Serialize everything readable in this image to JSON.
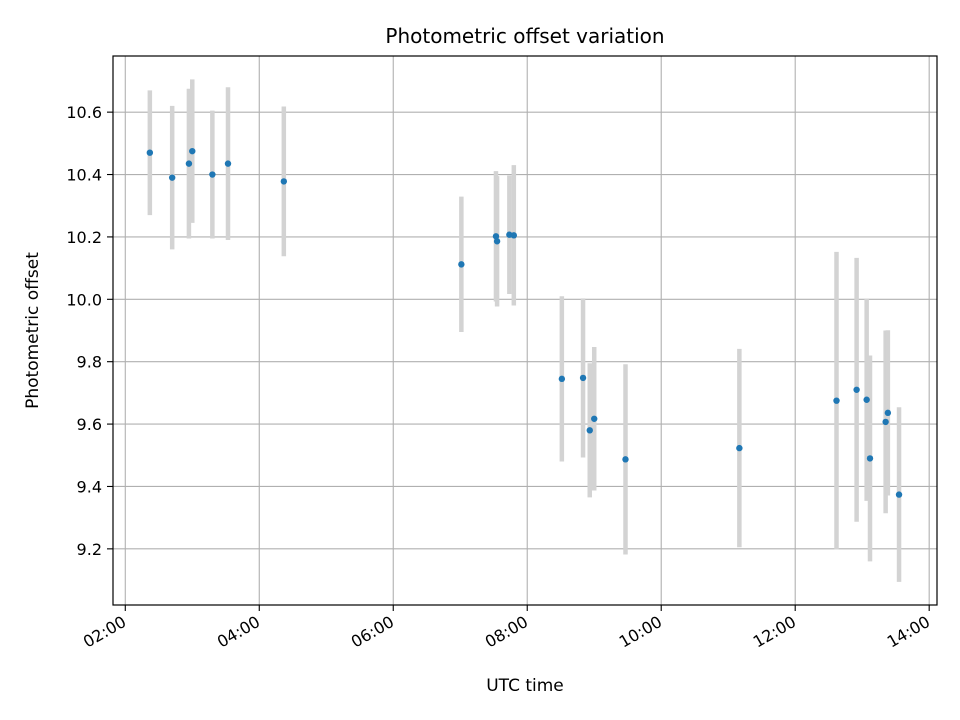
{
  "chart_data": {
    "type": "scatter",
    "title": "Photometric offset variation",
    "xlabel": "UTC time",
    "ylabel": "Photometric offset",
    "xlim": [
      "01:49",
      "14:07"
    ],
    "ylim": [
      9.02,
      10.78
    ],
    "x_ticks": [
      "02:00",
      "04:00",
      "06:00",
      "08:00",
      "10:00",
      "12:00",
      "14:00"
    ],
    "y_ticks": [
      "9.2",
      "9.4",
      "9.6",
      "9.8",
      "10.0",
      "10.2",
      "10.4",
      "10.6"
    ],
    "grid": true,
    "point_color": "#1f77b4",
    "errorbar_color": "#d3d3d3",
    "points": [
      {
        "x": "02:22",
        "y": 10.47,
        "err": 0.2
      },
      {
        "x": "02:42",
        "y": 10.39,
        "err": 0.23
      },
      {
        "x": "02:57",
        "y": 10.435,
        "err": 0.24
      },
      {
        "x": "03:00",
        "y": 10.475,
        "err": 0.23
      },
      {
        "x": "03:18",
        "y": 10.4,
        "err": 0.205
      },
      {
        "x": "03:32",
        "y": 10.435,
        "err": 0.245
      },
      {
        "x": "04:22",
        "y": 10.378,
        "err": 0.24
      },
      {
        "x": "07:01",
        "y": 10.112,
        "err": 0.217
      },
      {
        "x": "07:32",
        "y": 10.202,
        "err": 0.209
      },
      {
        "x": "07:33",
        "y": 10.186,
        "err": 0.209
      },
      {
        "x": "07:44",
        "y": 10.207,
        "err": 0.19
      },
      {
        "x": "07:48",
        "y": 10.205,
        "err": 0.225
      },
      {
        "x": "08:31",
        "y": 9.745,
        "err": 0.265
      },
      {
        "x": "08:50",
        "y": 9.748,
        "err": 0.255
      },
      {
        "x": "08:56",
        "y": 9.58,
        "err": 0.215
      },
      {
        "x": "09:00",
        "y": 9.617,
        "err": 0.23
      },
      {
        "x": "09:28",
        "y": 9.487,
        "err": 0.305
      },
      {
        "x": "11:10",
        "y": 9.523,
        "err": 0.318
      },
      {
        "x": "12:37",
        "y": 9.675,
        "err": 0.477
      },
      {
        "x": "12:55",
        "y": 9.71,
        "err": 0.423
      },
      {
        "x": "13:04",
        "y": 9.678,
        "err": 0.324
      },
      {
        "x": "13:07",
        "y": 9.49,
        "err": 0.33
      },
      {
        "x": "13:21",
        "y": 9.607,
        "err": 0.293
      },
      {
        "x": "13:23",
        "y": 9.636,
        "err": 0.265
      },
      {
        "x": "13:33",
        "y": 9.374,
        "err": 0.28
      }
    ]
  }
}
